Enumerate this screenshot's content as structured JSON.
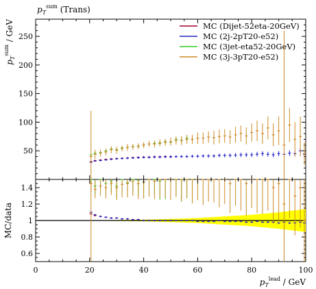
{
  "chart_data": {
    "type": "scatter",
    "title": "p_T^sum (Trans)",
    "xlabel": "p_T^lead / GeV",
    "ylabel": "p_T^sum / GeV",
    "ratio_ylabel": "MC/data",
    "xlim": [
      0,
      100
    ],
    "ylim": [
      0,
      280
    ],
    "ratio_ylim": [
      0.5,
      1.5
    ],
    "x_ticks": [
      "0",
      "20",
      "40",
      "60",
      "80",
      "100"
    ],
    "y_ticks": [
      "50",
      "100",
      "150",
      "200",
      "250"
    ],
    "ratio_ticks": [
      "0.6",
      "0.8",
      "1",
      "1.2",
      "1.4"
    ],
    "legend_position": "top-right",
    "series": [
      {
        "name": "MC (Dijet-52eta-20GeV)",
        "color": "#a0002a",
        "x": [
          20.5,
          22,
          24,
          26,
          28,
          30,
          32,
          34,
          36,
          38,
          40,
          42,
          44,
          46,
          48,
          50
        ],
        "y": [
          31,
          33,
          34,
          35,
          36,
          36.5,
          37,
          37.5,
          38,
          38.5,
          39,
          39,
          39.5,
          39.5,
          40,
          40
        ],
        "ratio": [
          1.08,
          1.06,
          1.05,
          1.04,
          1.03,
          1.03,
          1.02,
          1.02,
          1.01,
          1.01,
          1.0,
          1.0,
          1.0,
          1.0,
          1.0,
          1.0
        ]
      },
      {
        "name": "MC (2j-2pT20-e52)",
        "color": "#2020c8",
        "x": [
          20.5,
          22,
          24,
          26,
          28,
          30,
          32,
          34,
          36,
          38,
          40,
          42,
          44,
          46,
          48,
          50,
          52,
          54,
          56,
          58,
          60,
          62,
          64,
          66,
          68,
          70,
          72,
          74,
          76,
          78,
          80,
          82,
          84,
          86,
          88,
          90,
          92,
          94,
          96,
          98,
          99.5
        ],
        "y": [
          30,
          32,
          33,
          34,
          35,
          36,
          36.5,
          37,
          37.5,
          38,
          38.5,
          38.5,
          39,
          39,
          39.5,
          39.5,
          40,
          40,
          40,
          40.5,
          40.5,
          41,
          41,
          41,
          42,
          42,
          42,
          42.5,
          43,
          43,
          43,
          44,
          45,
          44,
          43,
          45,
          44,
          46,
          45,
          50,
          44
        ],
        "ratio": [
          1.1,
          1.07,
          1.05,
          1.04,
          1.03,
          1.03,
          1.02,
          1.02,
          1.01,
          1.01,
          1.0,
          1.0,
          1.0,
          1.0,
          1.0,
          1.0,
          1.0,
          1.0,
          1.0,
          1.0,
          0.99,
          0.99,
          0.99,
          0.99,
          1.0,
          0.99,
          0.99,
          0.99,
          0.99,
          0.98,
          0.98,
          0.99,
          0.98,
          0.98,
          0.98,
          0.97,
          0.98,
          0.97,
          0.97,
          0.98,
          0.97
        ]
      },
      {
        "name": "MC (3jet-eta52-20GeV)",
        "color": "#33cc22",
        "x": [
          20.5,
          22,
          24,
          26,
          28,
          30,
          32,
          34,
          36,
          38,
          40,
          42,
          44,
          46,
          48,
          50,
          52,
          54,
          56,
          58
        ],
        "y": [
          43,
          46,
          47,
          50,
          53,
          52,
          55,
          56,
          57,
          58,
          60,
          62,
          63,
          63,
          66,
          65,
          70,
          68,
          72,
          70
        ],
        "ratio": [
          1.55,
          1.42,
          1.5,
          1.45,
          1.48,
          1.42,
          1.5,
          1.46,
          1.52,
          1.49,
          1.47,
          1.5,
          1.53,
          1.48,
          1.5,
          1.52,
          1.55,
          1.5,
          1.55,
          1.5
        ]
      },
      {
        "name": "MC (3j-3pT20-e52)",
        "color": "#cc8822",
        "x": [
          20.5,
          22,
          24,
          26,
          28,
          30,
          32,
          34,
          36,
          38,
          40,
          42,
          44,
          46,
          48,
          50,
          52,
          54,
          56,
          58,
          60,
          62,
          64,
          66,
          68,
          70,
          72,
          74,
          76,
          78,
          80,
          82,
          84,
          86,
          88,
          90,
          92,
          94,
          96,
          98,
          99.5
        ],
        "y": [
          40,
          44,
          46,
          48,
          52,
          51,
          54,
          56,
          57,
          58,
          60,
          62,
          62,
          64,
          65,
          66,
          68,
          68,
          70,
          70,
          72,
          72,
          74,
          73,
          75,
          76,
          74,
          78,
          80,
          76,
          82,
          85,
          80,
          90,
          78,
          85,
          60,
          95,
          70,
          75,
          45
        ],
        "y_err_hi": [
          80,
          8,
          6,
          6,
          6,
          6,
          5,
          6,
          5,
          5,
          5,
          5,
          6,
          6,
          6,
          7,
          7,
          8,
          8,
          8,
          10,
          10,
          10,
          12,
          12,
          12,
          12,
          14,
          14,
          15,
          16,
          18,
          18,
          20,
          20,
          25,
          200,
          30,
          30,
          35,
          20
        ],
        "ratio": [
          1.45,
          1.38,
          1.42,
          1.4,
          1.45,
          1.4,
          1.44,
          1.45,
          1.48,
          1.45,
          1.47,
          1.5,
          1.48,
          1.5,
          1.52,
          1.5,
          1.55,
          1.5,
          1.55,
          1.5,
          1.55,
          1.5,
          1.55,
          1.55,
          1.5,
          1.55,
          1.45,
          1.55,
          1.5,
          1.45,
          1.55,
          1.5,
          1.5,
          1.55,
          1.4,
          1.45,
          1.2,
          1.5,
          1.3,
          1.4,
          1.0
        ]
      }
    ],
    "data_band": {
      "color": "#ffff00",
      "x": [
        20,
        30,
        40,
        50,
        60,
        70,
        80,
        90,
        100
      ],
      "rel_err": [
        0.0,
        0.005,
        0.01,
        0.02,
        0.03,
        0.05,
        0.07,
        0.1,
        0.14
      ]
    }
  }
}
